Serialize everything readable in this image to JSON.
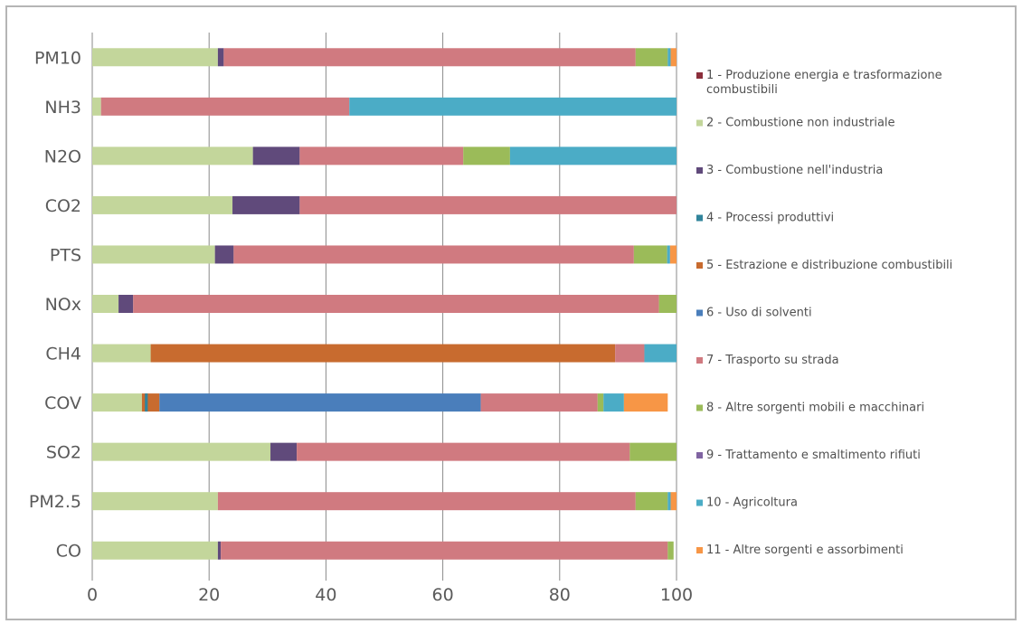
{
  "chart_data": {
    "type": "bar",
    "orientation": "horizontal",
    "stacked": "percent",
    "grid": true,
    "legend_position": "right",
    "xlim": [
      0,
      100
    ],
    "xticks": [
      "0",
      "20",
      "40",
      "60",
      "80",
      "100"
    ],
    "categories": [
      "PM10",
      "NH3",
      "N2O",
      "CO2",
      "PTS",
      "NOx",
      "CH4",
      "COV",
      "SO2",
      "PM2.5",
      "CO"
    ],
    "series": [
      {
        "name": "1 - Produzione energia e trasformazione combustibili",
        "color": "#8b2f3c",
        "values": [
          0,
          0,
          0,
          0,
          0,
          0,
          0,
          0,
          0,
          0,
          0
        ]
      },
      {
        "name": "2 - Combustione non industriale",
        "color": "#c3d69b",
        "values": [
          21.5,
          1.5,
          27.5,
          24.0,
          21.0,
          4.5,
          10.0,
          8.5,
          30.5,
          21.5,
          21.5
        ]
      },
      {
        "name": "3 - Combustione nell'industria",
        "color": "#604a7b",
        "values": [
          1.0,
          0,
          8.0,
          11.5,
          3.2,
          2.5,
          0,
          0,
          4.5,
          0,
          0.5
        ]
      },
      {
        "name": "4 - Processi produttivi",
        "color": "#31849b",
        "values": [
          0,
          0,
          0,
          0,
          0,
          0,
          0,
          0,
          0,
          0,
          0
        ]
      },
      {
        "name": "5 - Estrazione e distribuzione combustibili",
        "color": "#c86b2f",
        "values": [
          0,
          0,
          0,
          0,
          0,
          0,
          79.5,
          3.0,
          0,
          0,
          0
        ]
      },
      {
        "name": "6 - Uso di solventi",
        "color": "#4a7ebb",
        "values": [
          0,
          0,
          0,
          0,
          0,
          0,
          0,
          55.0,
          0,
          0,
          0
        ]
      },
      {
        "name": "7 - Trasporto su strada",
        "color": "#d07a80",
        "values": [
          70.5,
          42.5,
          28.0,
          65.0,
          68.5,
          90.0,
          5.0,
          20.0,
          57.0,
          71.5,
          76.5
        ]
      },
      {
        "name": "8 - Altre sorgenti mobili e macchinari",
        "color": "#9bbb59",
        "values": [
          5.5,
          0,
          8.0,
          0,
          5.7,
          3.0,
          0,
          1.0,
          8.0,
          5.5,
          1.0
        ]
      },
      {
        "name": "9 - Trattamento e smaltimento rifiuti",
        "color": "#8064a2",
        "values": [
          0,
          0,
          0,
          0,
          0,
          0,
          0,
          0,
          0,
          0,
          0
        ]
      },
      {
        "name": "10 - Agricoltura",
        "color": "#4bacc6",
        "values": [
          0.5,
          56.0,
          28.5,
          0,
          0.5,
          0,
          5.5,
          3.5,
          0,
          0.5,
          0
        ]
      },
      {
        "name": "11 - Altre sorgenti e assorbimenti",
        "color": "#f79646",
        "values": [
          1.0,
          0,
          0,
          0,
          1.1,
          0,
          0,
          7.5,
          0,
          1.0,
          0
        ]
      }
    ],
    "extra_marks": [
      {
        "category": "COV",
        "series": "4 - Processi produttivi",
        "start": 9.0,
        "value": 0.5
      }
    ]
  }
}
